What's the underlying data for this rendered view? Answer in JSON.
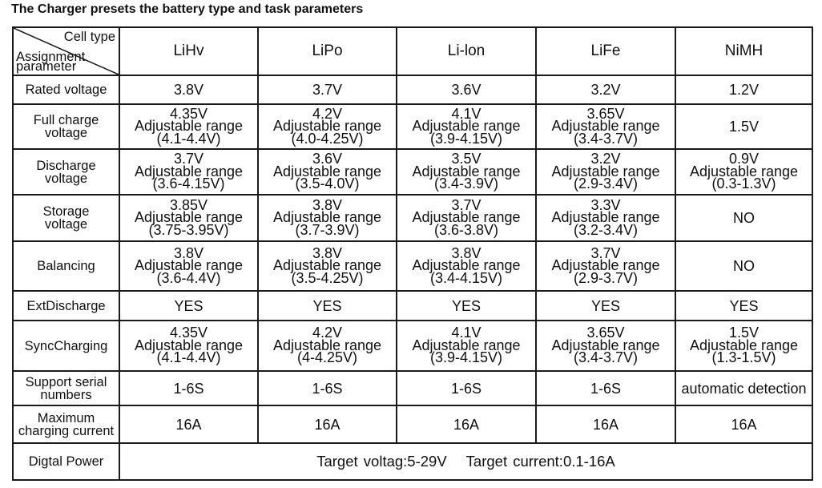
{
  "title": "The Charger presets the battery type and task parameters",
  "corner": {
    "top": "Cell type",
    "bottom": [
      "Assignment",
      "parameter"
    ]
  },
  "columns": [
    "LiHv",
    "LiPo",
    "Li-lon",
    "LiFe",
    "NiMH"
  ],
  "rows": [
    {
      "label": [
        "Rated voltage"
      ],
      "cells": [
        [
          "3.8V"
        ],
        [
          "3.7V"
        ],
        [
          "3.6V"
        ],
        [
          "3.2V"
        ],
        [
          "1.2V"
        ]
      ]
    },
    {
      "label": [
        "Full charge",
        "voltage"
      ],
      "cells": [
        [
          "4.35V",
          "Adjustable range",
          "(4.1-4.4V)"
        ],
        [
          "4.2V",
          "Adjustable range",
          "(4.0-4.25V)"
        ],
        [
          "4.1V",
          "Adjustable range",
          "(3.9-4.15V)"
        ],
        [
          "3.65V",
          "Adjustable range",
          "(3.4-3.7V)"
        ],
        [
          "1.5V"
        ]
      ]
    },
    {
      "label": [
        "Discharge",
        "voltage"
      ],
      "cells": [
        [
          "3.7V",
          "Adjustable range",
          "(3.6-4.15V)"
        ],
        [
          "3.6V",
          "Adjustable range",
          "(3.5-4.0V)"
        ],
        [
          "3.5V",
          "Adjustable range",
          "(3.4-3.9V)"
        ],
        [
          "3.2V",
          "Adjustable range",
          "(2.9-3.4V)"
        ],
        [
          "0.9V",
          "Adjustable range",
          "(0.3-1.3V)"
        ]
      ]
    },
    {
      "label": [
        "Storage",
        "voltage"
      ],
      "cells": [
        [
          "3.85V",
          "Adjustable range",
          "(3.75-3.95V)"
        ],
        [
          "3.8V",
          "Adjustable range",
          "(3.7-3.9V)"
        ],
        [
          "3.7V",
          "Adjustable range",
          "(3.6-3.8V)"
        ],
        [
          "3.3V",
          "Adjustable range",
          "(3.2-3.4V)"
        ],
        [
          "NO"
        ]
      ]
    },
    {
      "label": [
        "Balancing"
      ],
      "cells": [
        [
          "3.8V",
          "Adjustable range",
          "(3.6-4.4V)"
        ],
        [
          "3.8V",
          "Adjustable range",
          "(3.5-4.25V)"
        ],
        [
          "3.8V",
          "Adjustable range",
          "(3.4-4.15V)"
        ],
        [
          "3.7V",
          "Adjustable range",
          "(2.9-3.7V)"
        ],
        [
          "NO"
        ]
      ]
    },
    {
      "label": [
        "ExtDischarge"
      ],
      "cells": [
        [
          "YES"
        ],
        [
          "YES"
        ],
        [
          "YES"
        ],
        [
          "YES"
        ],
        [
          "YES"
        ]
      ]
    },
    {
      "label": [
        "SyncCharging"
      ],
      "cells": [
        [
          "4.35V",
          "Adjustable range",
          "(4.1-4.4V)"
        ],
        [
          "4.2V",
          "Adjustable range",
          "(4-4.25V)"
        ],
        [
          "4.1V",
          "Adjustable range",
          "(3.9-4.15V)"
        ],
        [
          "3.65V",
          "Adjustable range",
          "(3.4-3.7V)"
        ],
        [
          "1.5V",
          "Adjustable range",
          "(1.3-1.5V)"
        ]
      ]
    },
    {
      "label": [
        "Support serial",
        "numbers"
      ],
      "cells": [
        [
          "1-6S"
        ],
        [
          "1-6S"
        ],
        [
          "1-6S"
        ],
        [
          "1-6S"
        ],
        [
          "automatic detection"
        ]
      ]
    },
    {
      "label": [
        "Maximum",
        "charging current"
      ],
      "cells": [
        [
          "16A"
        ],
        [
          "16A"
        ],
        [
          "16A"
        ],
        [
          "16A"
        ],
        [
          "16A"
        ]
      ]
    }
  ],
  "digital_power": {
    "label": "Digtal Power",
    "target_voltage": "Target voltag:5-29V",
    "target_current": "Target current:0.1-16A"
  }
}
